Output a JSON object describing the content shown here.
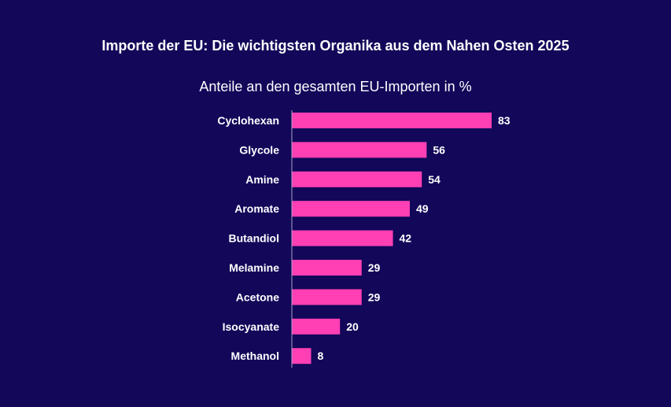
{
  "chart_data": {
    "type": "bar",
    "orientation": "horizontal",
    "title": "Importe der EU: Die wichtigsten Organika aus dem Nahen Osten 2025",
    "subtitle": "Anteile an den gesamten EU-Importen in %",
    "categories": [
      "Cyclohexan",
      "Glycole",
      "Amine",
      "Aromate",
      "Butandiol",
      "Melamine",
      "Acetone",
      "Isocyanate",
      "Methanol"
    ],
    "values": [
      83,
      56,
      54,
      49,
      42,
      29,
      29,
      20,
      8
    ],
    "xlim": [
      0,
      100
    ],
    "grid": false,
    "colors": {
      "background": "#120759",
      "bar": "#ff3fb4",
      "text": "#ffffff",
      "axis": "#aaa6c8"
    }
  }
}
